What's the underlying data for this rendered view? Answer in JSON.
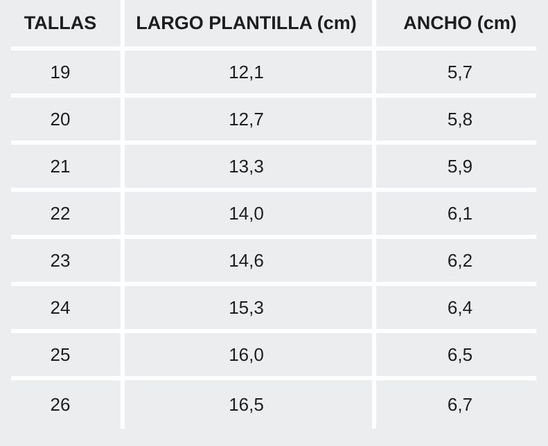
{
  "chart_data": {
    "type": "table",
    "title": "",
    "columns": [
      "TALLAS",
      "LARGO PLANTILLA (cm)",
      "ANCHO (cm)"
    ],
    "rows": [
      [
        "19",
        "12,1",
        "5,7"
      ],
      [
        "20",
        "12,7",
        "5,8"
      ],
      [
        "21",
        "13,3",
        "5,9"
      ],
      [
        "22",
        "14,0",
        "6,1"
      ],
      [
        "23",
        "14,6",
        "6,2"
      ],
      [
        "24",
        "15,3",
        "6,4"
      ],
      [
        "25",
        "16,0",
        "6,5"
      ],
      [
        "26",
        "16,5",
        "6,7"
      ]
    ],
    "colors": {
      "background": "#ecedee",
      "separator": "#ffffff",
      "text": "#1e1e1e"
    },
    "layout": {
      "grid": "white inset separators on light gray background",
      "column_alignment": [
        "center",
        "center",
        "center"
      ]
    }
  }
}
